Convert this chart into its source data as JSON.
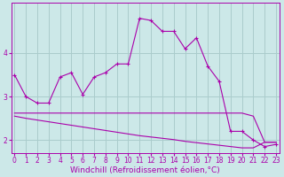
{
  "xlabel": "Windchill (Refroidissement éolien,°C)",
  "bg_color": "#cce8e8",
  "grid_color": "#aacccc",
  "line_color": "#aa00aa",
  "x_values": [
    0,
    1,
    2,
    3,
    4,
    5,
    6,
    7,
    8,
    9,
    10,
    11,
    12,
    13,
    14,
    15,
    16,
    17,
    18,
    19,
    20,
    21,
    22,
    23
  ],
  "line1": [
    3.5,
    3.0,
    2.85,
    2.85,
    3.45,
    3.55,
    3.05,
    3.45,
    3.55,
    3.75,
    3.75,
    4.8,
    4.75,
    4.5,
    4.5,
    4.1,
    4.35,
    3.7,
    3.35,
    2.2,
    2.2,
    2.0,
    1.85,
    1.9
  ],
  "line2": [
    2.62,
    2.62,
    2.62,
    2.62,
    2.62,
    2.62,
    2.62,
    2.62,
    2.62,
    2.62,
    2.62,
    2.62,
    2.62,
    2.62,
    2.62,
    2.62,
    2.62,
    2.62,
    2.62,
    2.62,
    2.62,
    2.55,
    1.95,
    1.95
  ],
  "line3": [
    2.55,
    2.5,
    2.46,
    2.42,
    2.38,
    2.34,
    2.3,
    2.26,
    2.22,
    2.18,
    2.14,
    2.1,
    2.07,
    2.04,
    2.01,
    1.97,
    1.94,
    1.91,
    1.88,
    1.85,
    1.82,
    1.82,
    1.95,
    1.95
  ],
  "ylim": [
    1.7,
    5.15
  ],
  "yticks": [
    2,
    3,
    4
  ],
  "xtick_labels": [
    "0",
    "1",
    "2",
    "3",
    "4",
    "5",
    "6",
    "7",
    "8",
    "9",
    "10",
    "11",
    "12",
    "13",
    "14",
    "15",
    "16",
    "17",
    "18",
    "19",
    "20",
    "21",
    "22",
    "23"
  ],
  "tick_fontsize": 5.5,
  "label_fontsize": 6.5
}
